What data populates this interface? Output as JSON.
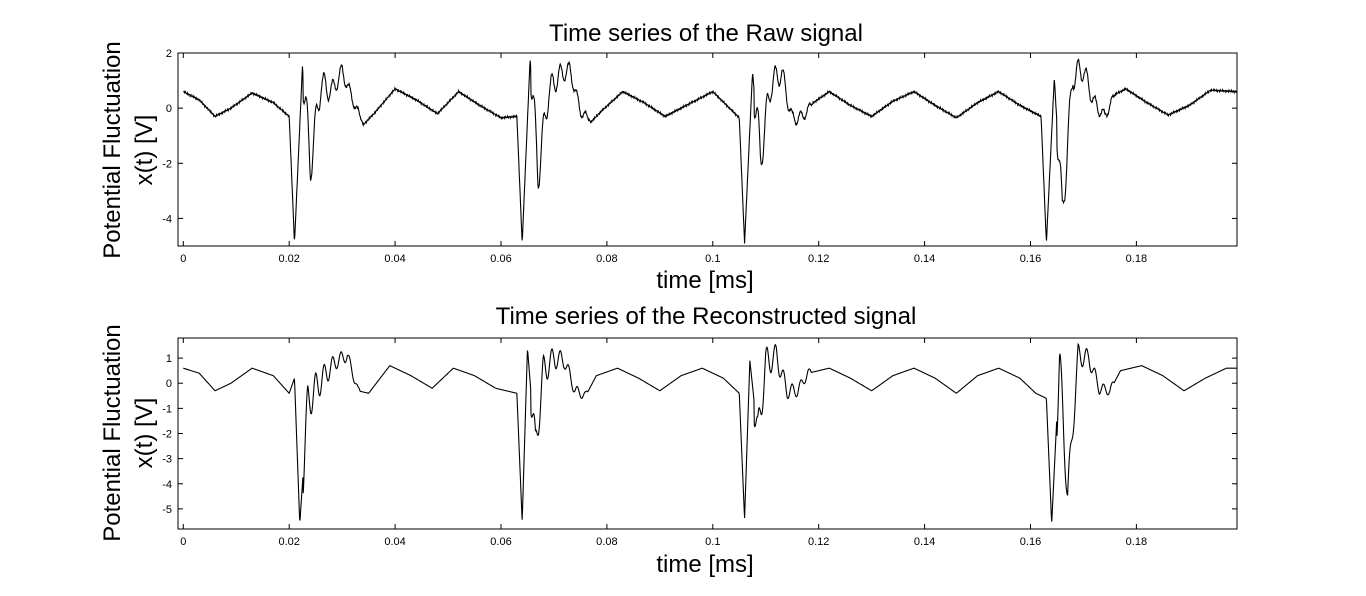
{
  "chart_data": [
    {
      "type": "line",
      "title": "Time series of the Raw signal",
      "xlabel": "time [ms]",
      "ylabel": [
        "Potential Fluctuation",
        "x(t)  [V]"
      ],
      "xlim": [
        -0.001,
        0.199
      ],
      "ylim": [
        -5,
        2
      ],
      "xticks": [
        0,
        0.02,
        0.04,
        0.06,
        0.08,
        0.1,
        0.12,
        0.14,
        0.16,
        0.18
      ],
      "xtick_labels": [
        "0",
        "0.02",
        "0.04",
        "0.06",
        "0.08",
        "0.1",
        "0.12",
        "0.14",
        "0.16",
        "0.18"
      ],
      "yticks": [
        -4,
        -2,
        0,
        2
      ],
      "ytick_labels": [
        "-4",
        "-2",
        "0",
        "2"
      ],
      "grid": false,
      "spike_times": [
        0.0214,
        0.0644,
        0.1066,
        0.1638
      ],
      "series": [
        {
          "x": [
            0,
            0.003,
            0.006,
            0.009,
            0.013,
            0.017,
            0.02,
            0.021,
            0.0225,
            0.024,
            0.026,
            0.028,
            0.03,
            0.032,
            0.034,
            0.036,
            0.04,
            0.044,
            0.048,
            0.052,
            0.056,
            0.06,
            0.063,
            0.064,
            0.0655,
            0.067,
            0.069,
            0.071,
            0.073,
            0.075,
            0.077,
            0.079,
            0.083,
            0.087,
            0.091,
            0.095,
            0.1,
            0.105,
            0.106,
            0.1075,
            0.109,
            0.111,
            0.113,
            0.115,
            0.117,
            0.119,
            0.122,
            0.126,
            0.13,
            0.134,
            0.138,
            0.142,
            0.146,
            0.15,
            0.154,
            0.158,
            0.162,
            0.163,
            0.1645,
            0.166,
            0.168,
            0.17,
            0.172,
            0.174,
            0.176,
            0.178,
            0.182,
            0.186,
            0.19,
            0.194,
            0.199
          ],
          "y": [
            0.6,
            0.3,
            -0.3,
            0.0,
            0.55,
            0.2,
            -0.3,
            -4.9,
            1.5,
            -2.1,
            0.9,
            0.6,
            1.35,
            0.3,
            -0.6,
            -0.2,
            0.7,
            0.3,
            -0.2,
            0.6,
            0.1,
            -0.35,
            -0.3,
            -4.9,
            1.8,
            -2.4,
            0.6,
            1.2,
            1.4,
            -0.1,
            -0.5,
            -0.1,
            0.6,
            0.2,
            -0.3,
            0.1,
            0.6,
            -0.35,
            -4.9,
            1.3,
            -1.8,
            0.9,
            1.3,
            -0.4,
            -0.3,
            0.2,
            0.6,
            0.1,
            -0.3,
            0.25,
            0.6,
            0.1,
            -0.35,
            0.2,
            0.6,
            0.1,
            -0.3,
            -4.9,
            1.1,
            -3.9,
            1.2,
            1.4,
            0.2,
            -0.3,
            0.5,
            0.7,
            0.2,
            -0.25,
            0.1,
            0.65,
            0.6
          ]
        }
      ]
    },
    {
      "type": "line",
      "title": "Time series of the Reconstructed signal",
      "xlabel": "time [ms]",
      "ylabel": [
        "Potential Fluctuation",
        "x(t)  [V]"
      ],
      "xlim": [
        -0.001,
        0.199
      ],
      "ylim": [
        -5.8,
        1.8
      ],
      "xticks": [
        0,
        0.02,
        0.04,
        0.06,
        0.08,
        0.1,
        0.12,
        0.14,
        0.16,
        0.18
      ],
      "xtick_labels": [
        "0",
        "0.02",
        "0.04",
        "0.06",
        "0.08",
        "0.1",
        "0.12",
        "0.14",
        "0.16",
        "0.18"
      ],
      "yticks": [
        -5,
        -4,
        -3,
        -2,
        -1,
        0,
        1
      ],
      "ytick_labels": [
        "-5",
        "-4",
        "-3",
        "-2",
        "-1",
        "0",
        "1"
      ],
      "grid": false,
      "spike_times": [
        0.0214,
        0.0644,
        0.1066,
        0.1638
      ],
      "series": [
        {
          "x": [
            0,
            0.003,
            0.006,
            0.009,
            0.013,
            0.017,
            0.02,
            0.021,
            0.022,
            0.0235,
            0.025,
            0.027,
            0.029,
            0.031,
            0.033,
            0.035,
            0.039,
            0.043,
            0.047,
            0.051,
            0.055,
            0.059,
            0.063,
            0.064,
            0.065,
            0.0665,
            0.068,
            0.07,
            0.072,
            0.074,
            0.076,
            0.078,
            0.082,
            0.086,
            0.09,
            0.094,
            0.098,
            0.102,
            0.105,
            0.106,
            0.107,
            0.1085,
            0.11,
            0.112,
            0.114,
            0.116,
            0.118,
            0.122,
            0.126,
            0.13,
            0.134,
            0.138,
            0.142,
            0.146,
            0.15,
            0.154,
            0.158,
            0.161,
            0.163,
            0.164,
            0.1655,
            0.167,
            0.169,
            0.171,
            0.173,
            0.175,
            0.177,
            0.181,
            0.185,
            0.189,
            0.193,
            0.197,
            0.199
          ],
          "y": [
            0.6,
            0.4,
            -0.3,
            0.0,
            0.6,
            0.3,
            -0.4,
            0.2,
            -5.6,
            -0.8,
            -0.2,
            0.4,
            0.9,
            1.1,
            -0.3,
            -0.4,
            0.7,
            0.3,
            -0.2,
            0.6,
            0.3,
            -0.2,
            -0.4,
            -5.5,
            1.4,
            -2.6,
            0.5,
            1.0,
            0.9,
            -0.3,
            -0.5,
            0.3,
            0.6,
            0.2,
            -0.3,
            0.3,
            0.6,
            0.2,
            -0.4,
            -5.4,
            0.9,
            -2.1,
            0.8,
            1.1,
            -0.3,
            -0.3,
            0.4,
            0.6,
            0.2,
            -0.3,
            0.3,
            0.6,
            0.2,
            -0.4,
            0.3,
            0.6,
            0.2,
            -0.4,
            -0.6,
            -5.6,
            0.9,
            -4.5,
            1.1,
            1.0,
            -0.2,
            -0.3,
            0.5,
            0.7,
            0.3,
            -0.3,
            0.2,
            0.6,
            0.6
          ]
        }
      ]
    }
  ]
}
